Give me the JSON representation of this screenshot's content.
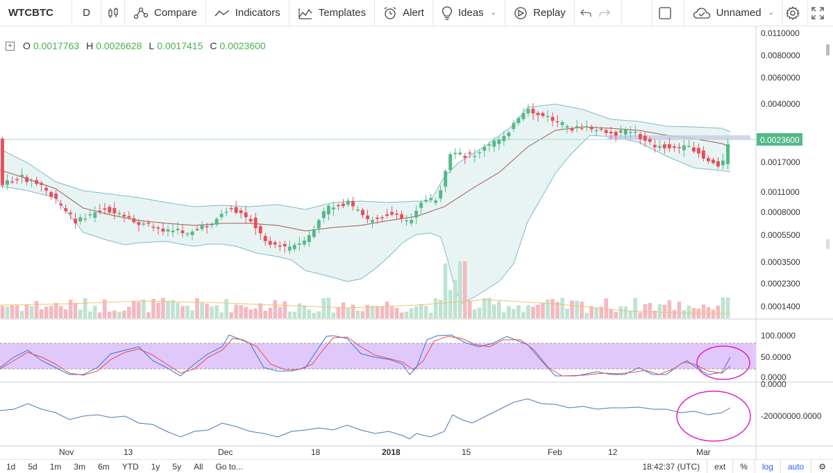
{
  "toolbar": {
    "symbol": "WTCBTC",
    "interval": "D",
    "compare": "Compare",
    "indicators": "Indicators",
    "templates": "Templates",
    "alert": "Alert",
    "ideas": "Ideas",
    "replay": "Replay",
    "layout_name": "Unnamed"
  },
  "ohlc": {
    "o_label": "O",
    "o": "0.0017763",
    "h_label": "H",
    "h": "0.0026628",
    "l_label": "L",
    "l": "0.0017415",
    "c_label": "C",
    "c": "0.0023600"
  },
  "price_axis": {
    "labels": [
      "0.0110000",
      "0.0080000",
      "0.0060000",
      "0.0040000",
      "0.0017000",
      "0.0011000",
      "0.0008000",
      "0.0005500",
      "0.0003500",
      "0.0002300",
      "0.0001400"
    ],
    "current_price": "0.0023600"
  },
  "osc_axis": {
    "labels": [
      "100.0000",
      "50.0000",
      "0.0000"
    ]
  },
  "vol_osc_axis": {
    "labels": [
      "0.0000",
      "-20000000.0000"
    ]
  },
  "time_axis": {
    "labels": [
      "Nov",
      "13",
      "Dec",
      "18",
      "2018",
      "15",
      "Feb",
      "12",
      "Mar"
    ]
  },
  "bottom": {
    "ranges": [
      "1d",
      "5d",
      "1m",
      "3m",
      "6m",
      "YTD",
      "1y",
      "5y",
      "All",
      "Go to..."
    ],
    "time": "18:42:37 (UTC)",
    "ext": "ext",
    "percent": "%",
    "log": "log",
    "auto": "auto"
  },
  "colors": {
    "up": "#53b987",
    "down": "#eb4d5c",
    "bb_fill": "#e8f4f3",
    "bb_line": "#7fb8c9",
    "ma_line": "#a0584d",
    "stoch_band": "#e1c8fb",
    "annotation": "#e020c8"
  }
}
